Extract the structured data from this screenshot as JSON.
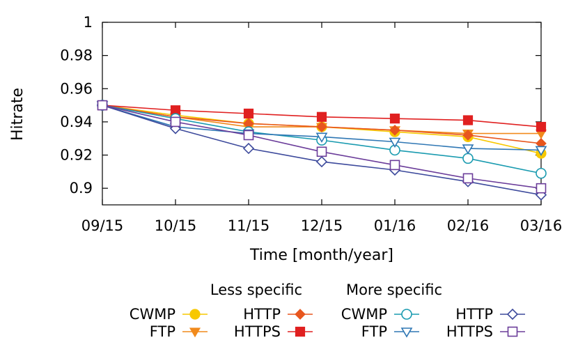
{
  "chart_data": {
    "type": "line",
    "xlabel": "Time [month/year]",
    "ylabel": "Hitrate",
    "categories": [
      "09/15",
      "10/15",
      "11/15",
      "12/15",
      "01/16",
      "02/16",
      "03/16"
    ],
    "ylim": [
      0.89,
      1.0
    ],
    "yticks": [
      0.9,
      0.92,
      0.94,
      0.96,
      0.98,
      1
    ],
    "ytick_labels": [
      "0.9",
      "0.92",
      "0.94",
      "0.96",
      "0.98",
      "1"
    ],
    "grid": false,
    "legend_position": "bottom",
    "legend_groups": [
      {
        "title": "Less specific",
        "series_indices": [
          0,
          1,
          2,
          3
        ]
      },
      {
        "title": "More specific",
        "series_indices": [
          4,
          5,
          6,
          7
        ]
      }
    ],
    "series": [
      {
        "name": "CWMP",
        "group": "Less specific",
        "color": "#f7c800",
        "marker": "circle-filled",
        "values": [
          0.95,
          0.944,
          0.939,
          0.937,
          0.934,
          0.931,
          0.921
        ]
      },
      {
        "name": "FTP",
        "group": "Less specific",
        "color": "#f18a1c",
        "marker": "triangle-down-filled",
        "values": [
          0.95,
          0.943,
          0.937,
          0.937,
          0.935,
          0.933,
          0.933
        ]
      },
      {
        "name": "HTTP",
        "group": "Less specific",
        "color": "#e8561e",
        "marker": "diamond-filled",
        "values": [
          0.95,
          0.943,
          0.939,
          0.937,
          0.935,
          0.932,
          0.927
        ]
      },
      {
        "name": "HTTPS",
        "group": "Less specific",
        "color": "#e02020",
        "marker": "square-filled",
        "values": [
          0.95,
          0.947,
          0.945,
          0.943,
          0.942,
          0.941,
          0.937
        ]
      },
      {
        "name": "CWMP",
        "group": "More specific",
        "color": "#1a9bb0",
        "marker": "circle-open",
        "values": [
          0.95,
          0.942,
          0.934,
          0.929,
          0.923,
          0.918,
          0.909
        ]
      },
      {
        "name": "FTP",
        "group": "More specific",
        "color": "#2f77b4",
        "marker": "triangle-down-open",
        "values": [
          0.95,
          0.937,
          0.933,
          0.931,
          0.928,
          0.924,
          0.923
        ]
      },
      {
        "name": "HTTP",
        "group": "More specific",
        "color": "#3d4a9c",
        "marker": "diamond-open",
        "values": [
          0.95,
          0.936,
          0.924,
          0.916,
          0.911,
          0.904,
          0.896
        ]
      },
      {
        "name": "HTTPS",
        "group": "More specific",
        "color": "#6b3d9a",
        "marker": "square-open",
        "values": [
          0.95,
          0.94,
          0.932,
          0.922,
          0.914,
          0.906,
          0.9
        ]
      }
    ]
  }
}
